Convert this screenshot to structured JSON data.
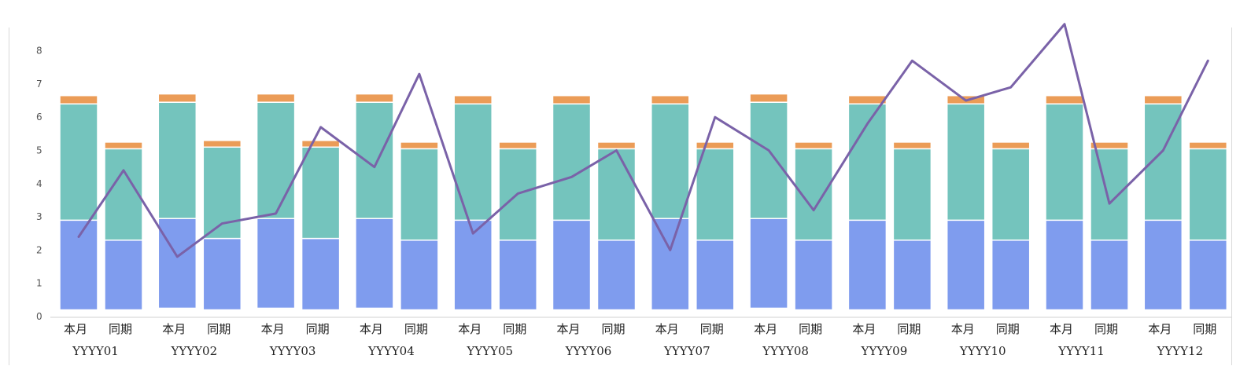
{
  "chart_data": {
    "type": "bar",
    "stacked": true,
    "groups": [
      "YYYY01",
      "YYYY02",
      "YYYY03",
      "YYYY04",
      "YYYY05",
      "YYYY06",
      "YYYY07",
      "YYYY08",
      "YYYY09",
      "YYYY10",
      "YYYY11",
      "YYYY12"
    ],
    "sub_categories": [
      "本月",
      "同期"
    ],
    "y_ticks": [
      "0",
      "1",
      "2",
      "3",
      "4",
      "5",
      "6",
      "7",
      "8"
    ],
    "ylim": [
      0,
      8.9
    ],
    "grid": false,
    "legend": "none",
    "colors": {
      "seg_blue": "#7f9cee",
      "seg_teal": "#74c4bd",
      "seg_orange": "#eb9c57",
      "line": "#7a62a8",
      "axis": "#d0d0d0"
    },
    "stack_segments": {
      "本月": [
        [
          0.25,
          2.65,
          3.5,
          0.25
        ]
      ],
      "同期": [
        [
          0.2,
          2.1,
          2.75,
          0.2
        ]
      ]
    },
    "bars": [
      {
        "group": "YYYY01",
        "sub": "本月",
        "segments": [
          0.2,
          2.7,
          3.5,
          0.25
        ]
      },
      {
        "group": "YYYY01",
        "sub": "同期",
        "segments": [
          0.2,
          2.1,
          2.75,
          0.2
        ]
      },
      {
        "group": "YYYY02",
        "sub": "本月",
        "segments": [
          0.25,
          2.7,
          3.5,
          0.25
        ]
      },
      {
        "group": "YYYY02",
        "sub": "同期",
        "segments": [
          0.2,
          2.15,
          2.75,
          0.2
        ]
      },
      {
        "group": "YYYY03",
        "sub": "本月",
        "segments": [
          0.25,
          2.7,
          3.5,
          0.25
        ]
      },
      {
        "group": "YYYY03",
        "sub": "同期",
        "segments": [
          0.2,
          2.15,
          2.75,
          0.2
        ]
      },
      {
        "group": "YYYY04",
        "sub": "本月",
        "segments": [
          0.25,
          2.7,
          3.5,
          0.25
        ]
      },
      {
        "group": "YYYY04",
        "sub": "同期",
        "segments": [
          0.2,
          2.1,
          2.75,
          0.2
        ]
      },
      {
        "group": "YYYY05",
        "sub": "本月",
        "segments": [
          0.2,
          2.7,
          3.5,
          0.25
        ]
      },
      {
        "group": "YYYY05",
        "sub": "同期",
        "segments": [
          0.2,
          2.1,
          2.75,
          0.2
        ]
      },
      {
        "group": "YYYY06",
        "sub": "本月",
        "segments": [
          0.2,
          2.7,
          3.5,
          0.25
        ]
      },
      {
        "group": "YYYY06",
        "sub": "同期",
        "segments": [
          0.2,
          2.1,
          2.75,
          0.2
        ]
      },
      {
        "group": "YYYY07",
        "sub": "本月",
        "segments": [
          0.2,
          2.75,
          3.45,
          0.25
        ]
      },
      {
        "group": "YYYY07",
        "sub": "同期",
        "segments": [
          0.2,
          2.1,
          2.75,
          0.2
        ]
      },
      {
        "group": "YYYY08",
        "sub": "本月",
        "segments": [
          0.25,
          2.7,
          3.5,
          0.25
        ]
      },
      {
        "group": "YYYY08",
        "sub": "同期",
        "segments": [
          0.2,
          2.1,
          2.75,
          0.2
        ]
      },
      {
        "group": "YYYY09",
        "sub": "本月",
        "segments": [
          0.2,
          2.7,
          3.5,
          0.25
        ]
      },
      {
        "group": "YYYY09",
        "sub": "同期",
        "segments": [
          0.2,
          2.1,
          2.75,
          0.2
        ]
      },
      {
        "group": "YYYY10",
        "sub": "本月",
        "segments": [
          0.2,
          2.7,
          3.5,
          0.25
        ]
      },
      {
        "group": "YYYY10",
        "sub": "同期",
        "segments": [
          0.2,
          2.1,
          2.75,
          0.2
        ]
      },
      {
        "group": "YYYY11",
        "sub": "本月",
        "segments": [
          0.2,
          2.7,
          3.5,
          0.25
        ]
      },
      {
        "group": "YYYY11",
        "sub": "同期",
        "segments": [
          0.2,
          2.1,
          2.75,
          0.2
        ]
      },
      {
        "group": "YYYY12",
        "sub": "本月",
        "segments": [
          0.2,
          2.7,
          3.5,
          0.25
        ]
      },
      {
        "group": "YYYY12",
        "sub": "同期",
        "segments": [
          0.2,
          2.1,
          2.75,
          0.2
        ]
      }
    ],
    "line": {
      "values": [
        2.4,
        4.4,
        1.8,
        2.8,
        3.1,
        5.7,
        4.5,
        7.3,
        2.5,
        3.7,
        4.2,
        5.0,
        2.0,
        6.0,
        5.0,
        3.2,
        5.8,
        7.7,
        6.5,
        6.9,
        8.8,
        3.4,
        5.0,
        7.7
      ]
    }
  }
}
